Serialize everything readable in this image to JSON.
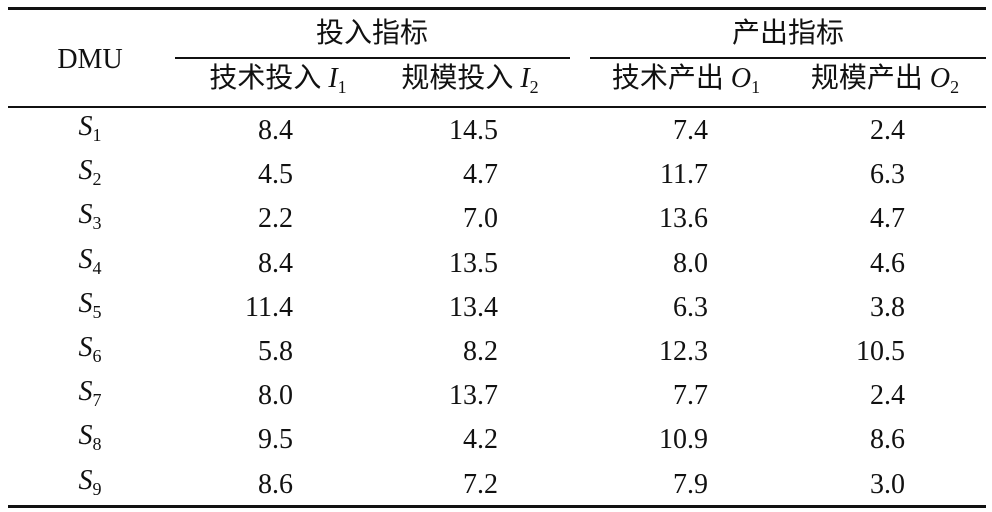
{
  "header": {
    "dmu": "DMU",
    "groups": [
      "投入指标",
      "产出指标"
    ],
    "columns": [
      {
        "text": "技术投入",
        "var": "I",
        "sub": "1"
      },
      {
        "text": "规模投入",
        "var": "I",
        "sub": "2"
      },
      {
        "text": "技术产出",
        "var": "O",
        "sub": "1"
      },
      {
        "text": "规模产出",
        "var": "O",
        "sub": "2"
      }
    ]
  },
  "table": {
    "rows": [
      {
        "var": "S",
        "sub": "1",
        "cells": [
          "8.4",
          "14.5",
          "7.4",
          "2.4"
        ]
      },
      {
        "var": "S",
        "sub": "2",
        "cells": [
          "4.5",
          "4.7",
          "11.7",
          "6.3"
        ]
      },
      {
        "var": "S",
        "sub": "3",
        "cells": [
          "2.2",
          "7.0",
          "13.6",
          "4.7"
        ]
      },
      {
        "var": "S",
        "sub": "4",
        "cells": [
          "8.4",
          "13.5",
          "8.0",
          "4.6"
        ]
      },
      {
        "var": "S",
        "sub": "5",
        "cells": [
          "11.4",
          "13.4",
          "6.3",
          "3.8"
        ]
      },
      {
        "var": "S",
        "sub": "6",
        "cells": [
          "5.8",
          "8.2",
          "12.3",
          "10.5"
        ]
      },
      {
        "var": "S",
        "sub": "7",
        "cells": [
          "8.0",
          "13.7",
          "7.7",
          "2.4"
        ]
      },
      {
        "var": "S",
        "sub": "8",
        "cells": [
          "9.5",
          "4.2",
          "10.9",
          "8.6"
        ]
      },
      {
        "var": "S",
        "sub": "9",
        "cells": [
          "8.6",
          "7.2",
          "7.9",
          "3.0"
        ]
      }
    ]
  }
}
